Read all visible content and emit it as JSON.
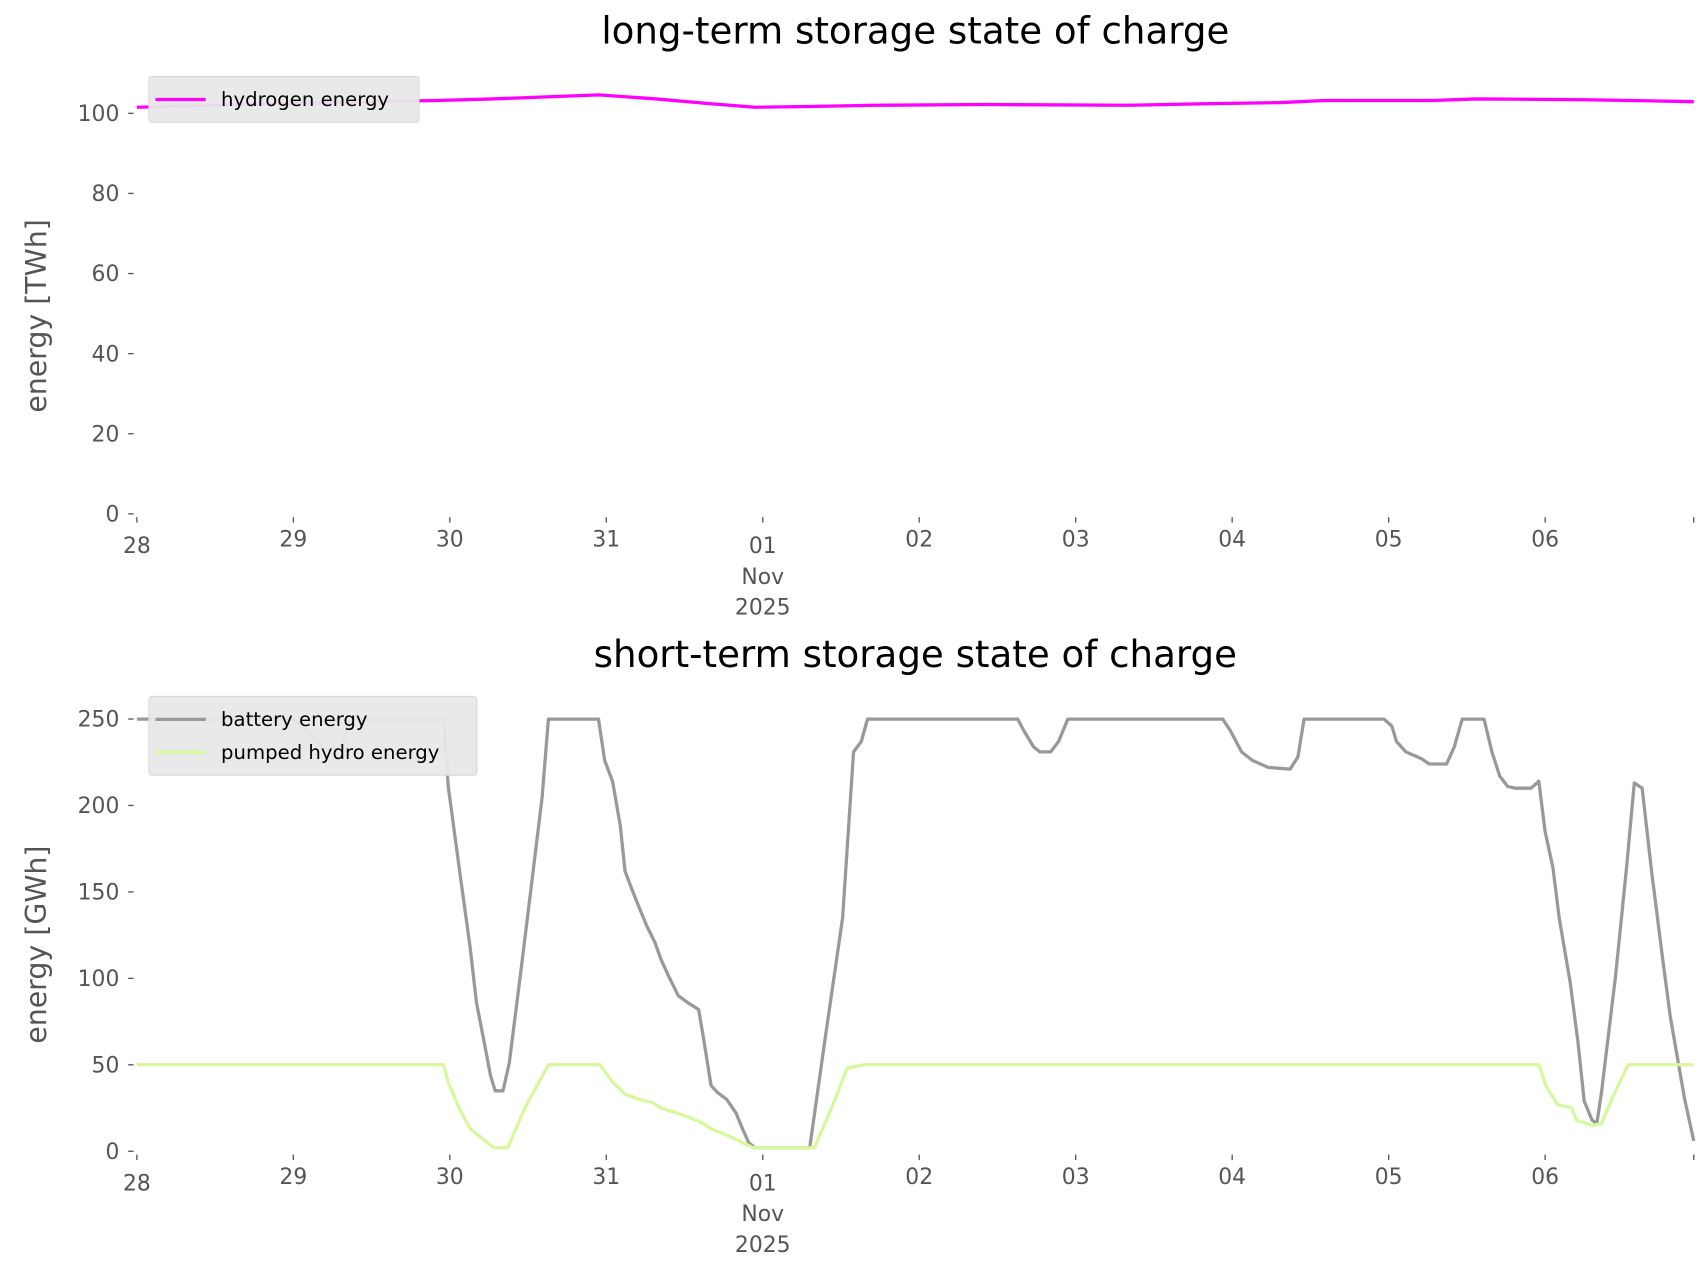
{
  "chart_data": [
    {
      "type": "line",
      "title": "long-term storage state of charge",
      "ylabel": "energy [TWh]",
      "xlabel": "",
      "x_unit": "days since 28 Oct 2025 00:00",
      "xlim": [
        0,
        9.95
      ],
      "ylim": [
        0,
        107
      ],
      "yticks": [
        0,
        20,
        40,
        60,
        80,
        100
      ],
      "xticks": [
        0,
        1,
        2,
        3,
        4,
        5,
        6,
        7,
        8,
        9,
        9.95
      ],
      "xtick_labels": [
        "28",
        "29",
        "30",
        "31",
        "01",
        "02",
        "03",
        "04",
        "05",
        "06",
        ""
      ],
      "xtick_sublabel": {
        "month": "Nov",
        "year": "2025"
      },
      "grid": false,
      "legend_position": "top-left",
      "series": [
        {
          "name": "hydrogen energy",
          "color": "#ff00ff",
          "x": [
            0,
            0.52,
            1.22,
            1.92,
            2.27,
            2.62,
            2.95,
            3.32,
            3.67,
            3.95,
            4.3,
            4.72,
            5.42,
            6.33,
            6.82,
            7.31,
            7.59,
            8.28,
            8.56,
            9.26,
            9.95
          ],
          "y": [
            101.5,
            102,
            102.7,
            103.2,
            103.6,
            104.1,
            104.6,
            103.6,
            102.4,
            101.5,
            101.7,
            102,
            102.2,
            102,
            102.4,
            102.7,
            103.2,
            103.2,
            103.6,
            103.4,
            102.9
          ]
        }
      ]
    },
    {
      "type": "line",
      "title": "short-term storage state of charge",
      "ylabel": "energy [GWh]",
      "xlabel": "",
      "x_unit": "days since 28 Oct 2025 00:00",
      "xlim": [
        0,
        9.95
      ],
      "ylim": [
        0,
        258
      ],
      "yticks": [
        0,
        50,
        100,
        150,
        200,
        250
      ],
      "xticks": [
        0,
        1,
        2,
        3,
        4,
        5,
        6,
        7,
        8,
        9,
        9.95
      ],
      "xtick_labels": [
        "28",
        "29",
        "30",
        "31",
        "01",
        "02",
        "03",
        "04",
        "05",
        "06",
        ""
      ],
      "xtick_sublabel": {
        "month": "Nov",
        "year": "2025"
      },
      "grid": false,
      "legend_position": "top-left",
      "series": [
        {
          "name": "battery energy",
          "color": "#999999",
          "x": [
            0,
            1.0,
            1.1,
            1.2,
            1.3,
            1.37,
            1.96,
            1.99,
            2.06,
            2.13,
            2.17,
            2.22,
            2.26,
            2.29,
            2.34,
            2.38,
            2.45,
            2.52,
            2.59,
            2.63,
            2.95,
            2.99,
            3.04,
            3.09,
            3.12,
            3.17,
            3.21,
            3.26,
            3.31,
            3.35,
            3.4,
            3.46,
            3.52,
            3.59,
            3.62,
            3.67,
            3.71,
            3.77,
            3.83,
            3.87,
            3.91,
            3.95,
            4.3,
            4.4,
            4.51,
            4.58,
            4.63,
            4.67,
            5.63,
            5.67,
            5.73,
            5.77,
            5.84,
            5.89,
            5.95,
            6.94,
            6.99,
            7.06,
            7.13,
            7.23,
            7.37,
            7.42,
            7.46,
            7.97,
            8.02,
            8.05,
            8.11,
            8.21,
            8.26,
            8.37,
            8.42,
            8.47,
            8.61,
            8.66,
            8.71,
            8.76,
            8.81,
            8.91,
            8.96,
            9.0,
            9.05,
            9.09,
            9.16,
            9.21,
            9.25,
            9.3,
            9.33,
            9.36,
            9.45,
            9.52,
            9.57,
            9.62,
            9.68,
            9.75,
            9.8,
            9.89,
            9.95
          ],
          "y": [
            250,
            250,
            241,
            233,
            233,
            250,
            250,
            211,
            164,
            118,
            86,
            63,
            44,
            35,
            35,
            51,
            101,
            153,
            205,
            250,
            250,
            226,
            214,
            188,
            162,
            150,
            141,
            130,
            121,
            111,
            101,
            90,
            86,
            82,
            66,
            38,
            34,
            30,
            22,
            13,
            5,
            2,
            2,
            66,
            135,
            231,
            237,
            250,
            250,
            243,
            234,
            231,
            231,
            237,
            250,
            250,
            243,
            231,
            226,
            222,
            221,
            228,
            250,
            250,
            246,
            237,
            231,
            227,
            224,
            224,
            234,
            250,
            250,
            231,
            217,
            211,
            210,
            210,
            214,
            185,
            164,
            135,
            98,
            63,
            29,
            18,
            16,
            34,
            101,
            164,
            213,
            210,
            162,
            112,
            78,
            31,
            6
          ]
        },
        {
          "name": "pumped hydro energy",
          "color": "#d9f79c",
          "x": [
            0,
            1.96,
            1.99,
            2.06,
            2.13,
            2.2,
            2.28,
            2.37,
            2.48,
            2.63,
            2.96,
            3.04,
            3.12,
            3.21,
            3.3,
            3.35,
            3.49,
            3.6,
            3.67,
            3.78,
            3.87,
            3.94,
            4.33,
            4.44,
            4.54,
            4.65,
            8.96,
            9.01,
            9.08,
            9.17,
            9.2,
            9.3,
            9.36,
            9.43,
            9.53,
            9.95
          ],
          "y": [
            50,
            50,
            40,
            25,
            13,
            8,
            2,
            2,
            25,
            50,
            50,
            40,
            33,
            30,
            28,
            25,
            21,
            17,
            13,
            9,
            5,
            2,
            2,
            25,
            48,
            50,
            50,
            37,
            27,
            25,
            18,
            15,
            16,
            31,
            50,
            50
          ]
        }
      ]
    }
  ]
}
